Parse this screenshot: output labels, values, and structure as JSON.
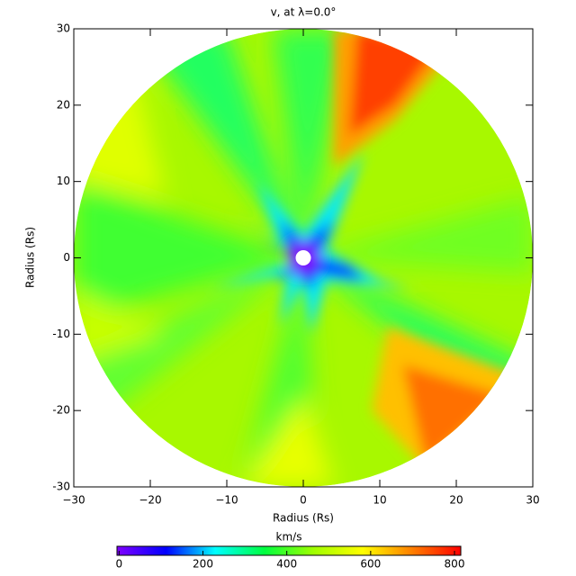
{
  "chart_data": {
    "type": "heatmap",
    "title": "v, at λ=0.0°",
    "x_label": "Radius (Rs)",
    "y_label": "Radius (Rs)",
    "xlim": [
      -30,
      30
    ],
    "ylim": [
      -30,
      30
    ],
    "xticks": [
      {
        "value": -30,
        "label": "−30"
      },
      {
        "value": -20,
        "label": "−20"
      },
      {
        "value": -10,
        "label": "−10"
      },
      0,
      10,
      20,
      30
    ],
    "yticks": [
      -30,
      -20,
      -10,
      0,
      10,
      20,
      30
    ],
    "colorbar": {
      "label": "km/s",
      "clim": [
        -5,
        815
      ],
      "ticks": [
        0,
        200,
        400,
        600,
        800
      ],
      "colormap": [
        "#8000ff",
        "#0000ff",
        "#00ffff",
        "#00ff40",
        "#a0ff00",
        "#ffff00",
        "#ff8000",
        "#ff0000"
      ]
    }
  }
}
